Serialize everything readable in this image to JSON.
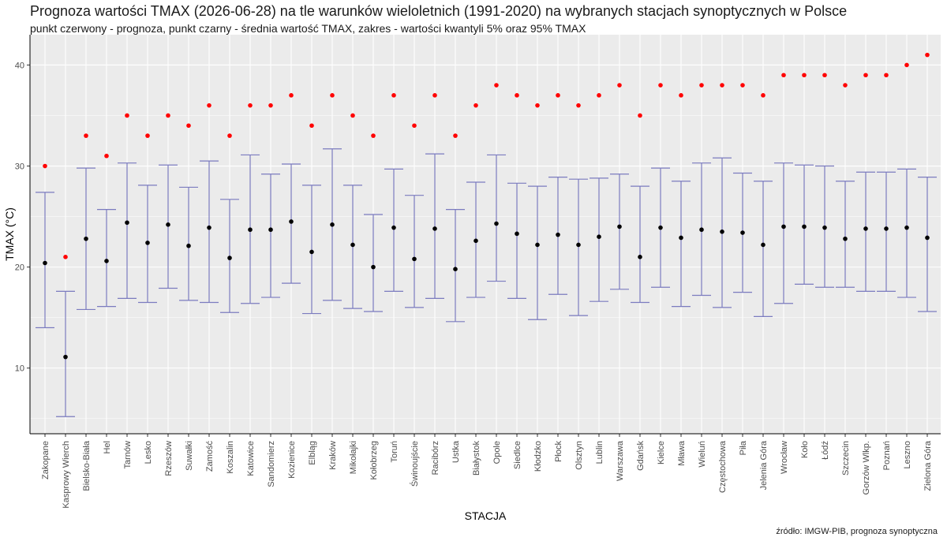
{
  "header": {
    "title": "Prognoza wartości TMAX (2026-06-28) na tle warunków wieloletnich (1991-2020) na wybranych stacjach synoptycznych w Polsce",
    "subtitle": "punkt czerwony - prognoza, punkt czarny - średnia wartość TMAX, zakres - wartości kwantyli 5% oraz 95% TMAX",
    "caption": "źródło: IMGW-PIB, prognoza synoptyczna"
  },
  "colors": {
    "panel": "#ebebeb",
    "grid": "#ffffff",
    "forecast": "#ff0000",
    "mean": "#000000",
    "errorbar": "#7b7bbf"
  },
  "chart_data": {
    "type": "scatter",
    "xlabel": "STACJA",
    "ylabel": "TMAX (°C)",
    "ylim": [
      3.5,
      43
    ],
    "yticks": [
      10,
      20,
      30,
      40
    ],
    "grid": true,
    "categories": [
      "Zakopane",
      "Kasprowy Wierch",
      "Bielsko-Biała",
      "Hel",
      "Tarnów",
      "Lesko",
      "Rzeszów",
      "Suwałki",
      "Zamość",
      "Koszalin",
      "Katowice",
      "Sandomierz",
      "Kozienice",
      "Elbląg",
      "Kraków",
      "Mikołajki",
      "Kołobrzeg",
      "Toruń",
      "Świnoujście",
      "Racibórz",
      "Ustka",
      "Białystok",
      "Opole",
      "Siedlce",
      "Kłodzko",
      "Płock",
      "Olsztyn",
      "Lublin",
      "Warszawa",
      "Gdańsk",
      "Kielce",
      "Mława",
      "Wieluń",
      "Częstochowa",
      "Piła",
      "Jelenia Góra",
      "Wrocław",
      "Koło",
      "Łódź",
      "Szczecin",
      "Gorzów Wlkp.",
      "Poznań",
      "Leszno",
      "Zielona Góra"
    ],
    "series": [
      {
        "name": "prognoza",
        "values": [
          30,
          21,
          33,
          31,
          35,
          33,
          35,
          34,
          36,
          33,
          36,
          36,
          37,
          34,
          37,
          35,
          33,
          37,
          34,
          37,
          33,
          36,
          38,
          37,
          36,
          37,
          36,
          37,
          38,
          35,
          38,
          37,
          38,
          38,
          38,
          37,
          39,
          39,
          39,
          38,
          39,
          39,
          40,
          41
        ]
      },
      {
        "name": "średnia wartość TMAX",
        "values": [
          20.4,
          11.1,
          22.8,
          20.6,
          24.4,
          22.4,
          24.2,
          22.1,
          23.9,
          20.9,
          23.7,
          23.7,
          24.5,
          21.5,
          24.2,
          22.2,
          20.0,
          23.9,
          20.8,
          23.8,
          19.8,
          22.6,
          24.3,
          23.3,
          22.2,
          23.2,
          22.2,
          23.0,
          24.0,
          21.0,
          23.9,
          22.9,
          23.7,
          23.5,
          23.4,
          22.2,
          24.0,
          24.0,
          23.9,
          22.8,
          23.8,
          23.8,
          23.9,
          22.9
        ]
      },
      {
        "name": "kwantyl 5%",
        "values": [
          14.0,
          5.2,
          15.8,
          16.1,
          16.9,
          16.5,
          17.9,
          16.7,
          16.5,
          15.5,
          16.4,
          17.0,
          18.4,
          15.4,
          16.7,
          15.9,
          15.6,
          17.6,
          16.0,
          16.9,
          14.6,
          17.0,
          18.6,
          16.9,
          14.8,
          17.3,
          15.2,
          16.6,
          17.8,
          16.5,
          18.0,
          16.1,
          17.2,
          16.0,
          17.5,
          15.1,
          16.4,
          18.3,
          18.0,
          18.0,
          17.6,
          17.6,
          17.0,
          15.6
        ]
      },
      {
        "name": "kwantyl 95%",
        "values": [
          27.4,
          17.6,
          29.8,
          25.7,
          30.3,
          28.1,
          30.1,
          27.9,
          30.5,
          26.7,
          31.1,
          29.2,
          30.2,
          28.1,
          31.7,
          28.1,
          25.2,
          29.7,
          27.1,
          31.2,
          25.7,
          28.4,
          31.1,
          28.3,
          28.0,
          28.9,
          28.7,
          28.8,
          29.2,
          28.0,
          29.8,
          28.5,
          30.3,
          30.8,
          29.3,
          28.5,
          30.3,
          30.1,
          30.0,
          28.5,
          29.4,
          29.4,
          29.7,
          28.9
        ]
      }
    ]
  }
}
